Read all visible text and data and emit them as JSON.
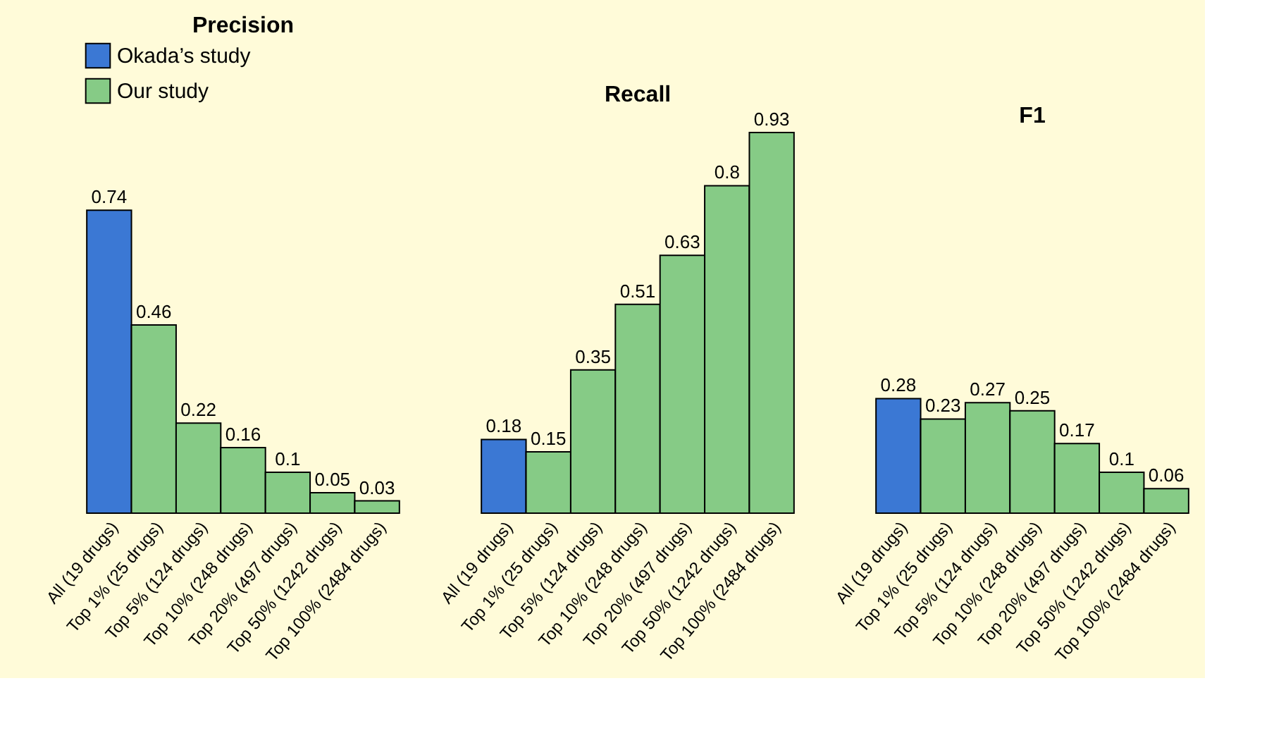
{
  "chart_data": [
    {
      "type": "bar",
      "title": "Precision",
      "categories": [
        "All (19 drugs)",
        "Top 1% (25 drugs)",
        "Top 5% (124 drugs)",
        "Top 10% (248 drugs)",
        "Top 20% (497 drugs)",
        "Top 50% (1242 drugs)",
        "Top 100% (2484 drugs)"
      ],
      "data_labels": true,
      "legend": "top",
      "series": [
        {
          "name": "Okada’s study",
          "color": "#3b78d4",
          "values": [
            0.74,
            null,
            null,
            null,
            null,
            null,
            null
          ]
        },
        {
          "name": "Our study",
          "color": "#86cb86",
          "values": [
            null,
            0.46,
            0.22,
            0.16,
            0.1,
            0.05,
            0.03
          ]
        }
      ]
    },
    {
      "type": "bar",
      "title": "Recall",
      "categories": [
        "All (19 drugs)",
        "Top 1% (25 drugs)",
        "Top 5% (124 drugs)",
        "Top 10% (248 drugs)",
        "Top 20% (497 drugs)",
        "Top 50% (1242 drugs)",
        "Top 100% (2484 drugs)"
      ],
      "data_labels": true,
      "series": [
        {
          "color": "#3b78d4",
          "values": [
            0.18,
            null,
            null,
            null,
            null,
            null,
            null
          ]
        },
        {
          "color": "#86cb86",
          "values": [
            null,
            0.15,
            0.35,
            0.51,
            0.63,
            0.8,
            0.93
          ]
        }
      ]
    },
    {
      "type": "bar",
      "title": "F1",
      "categories": [
        "All (19 drugs)",
        "Top 1% (25 drugs)",
        "Top 5% (124 drugs)",
        "Top 10% (248 drugs)",
        "Top 20% (497 drugs)",
        "Top 50% (1242 drugs)",
        "Top 100% (2484 drugs)"
      ],
      "data_labels": true,
      "series": [
        {
          "color": "#3b78d4",
          "values": [
            0.28,
            null,
            null,
            null,
            null,
            null,
            null
          ]
        },
        {
          "color": "#86cb86",
          "values": [
            null,
            0.23,
            0.27,
            0.25,
            0.17,
            0.1,
            0.06
          ]
        }
      ]
    }
  ]
}
